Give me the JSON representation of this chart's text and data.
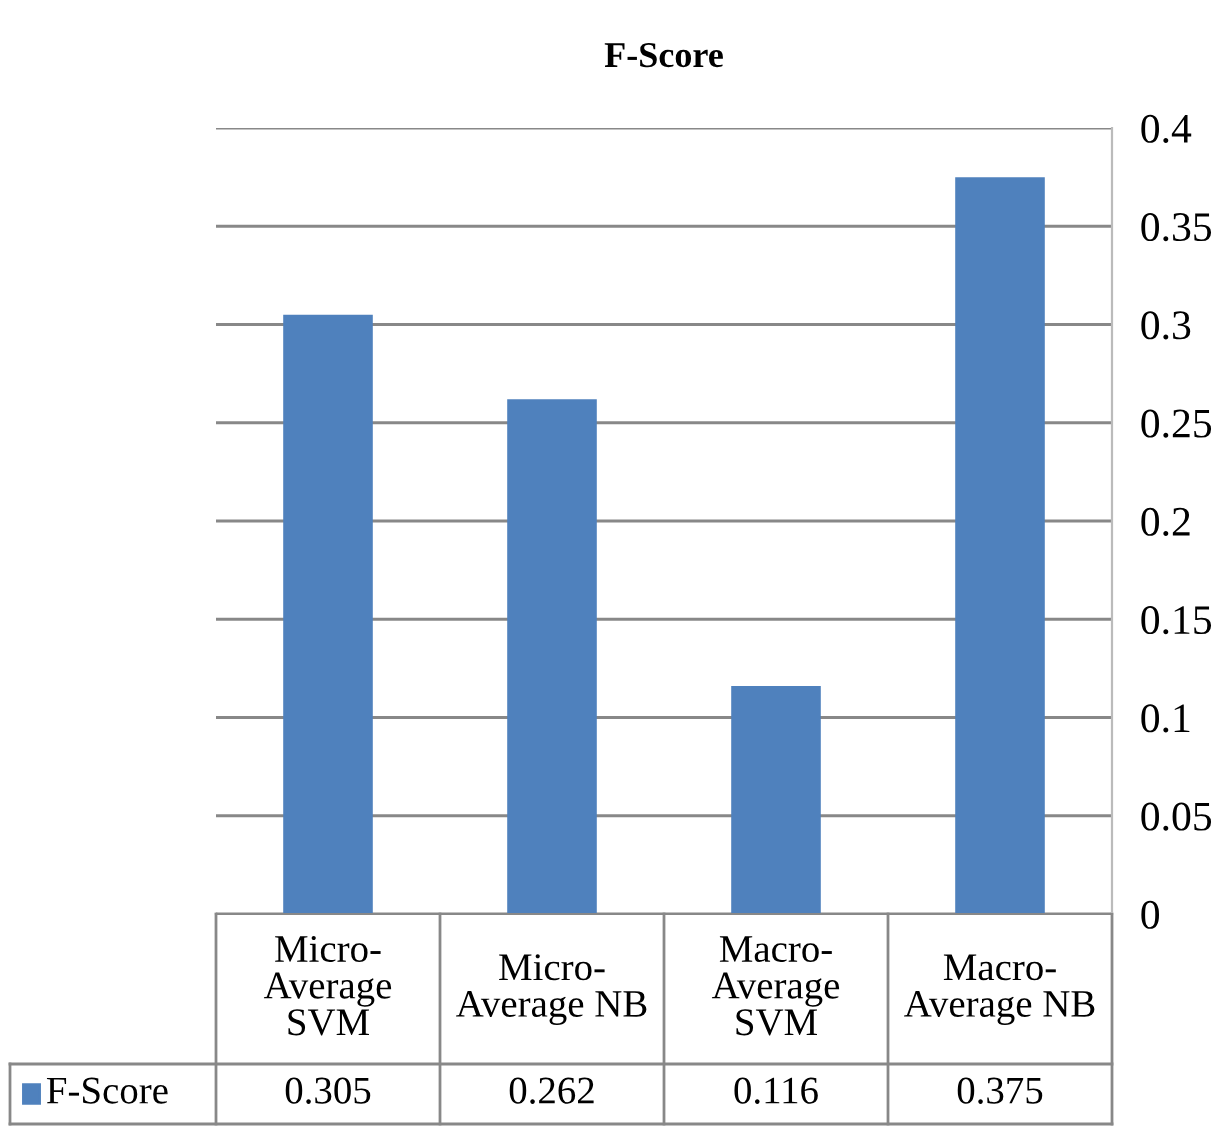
{
  "chart_data": {
    "type": "bar",
    "title": "F-Score",
    "categories": [
      "Micro-\nAverage\nSVM",
      "Micro-\nAverage NB",
      "Macro-\nAverage\nSVM",
      "Macro-\nAverage NB"
    ],
    "series": [
      {
        "name": "F-Score",
        "color": "#4f81bd",
        "values": [
          0.305,
          0.262,
          0.116,
          0.375
        ]
      }
    ],
    "ylim": [
      0,
      0.4
    ],
    "yticks": [
      0,
      0.05,
      0.1,
      0.15,
      0.2,
      0.25,
      0.3,
      0.35,
      0.4
    ],
    "grid": "y",
    "legend": "bottom left",
    "data_labels": true
  }
}
